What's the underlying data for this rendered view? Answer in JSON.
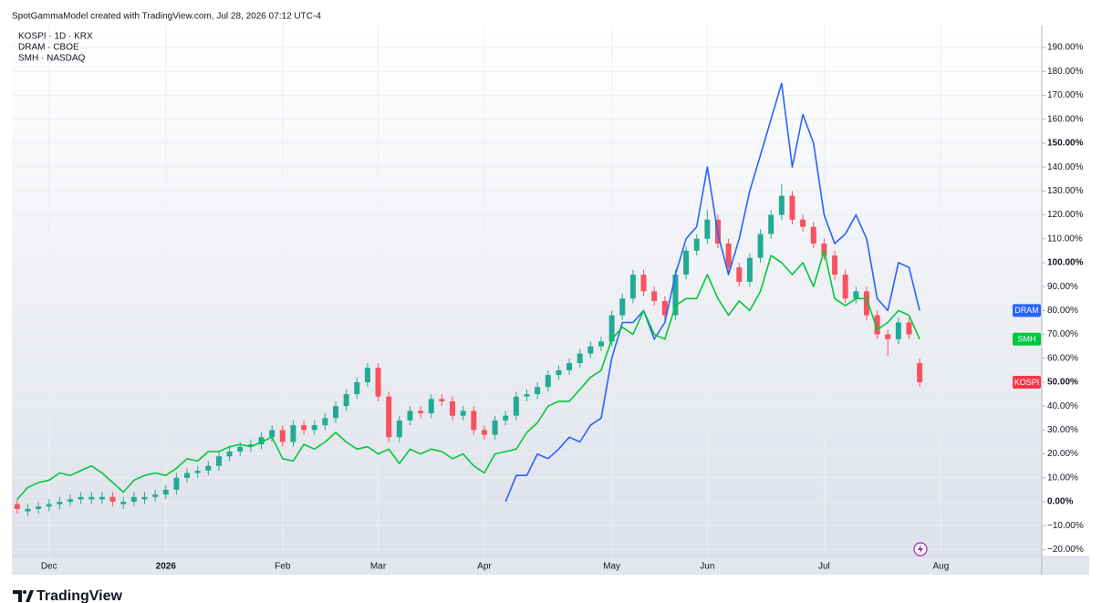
{
  "header": {
    "text": "SpotGammaModel created with TradingView.com, Jul 28, 2026 07:12 UTC-4"
  },
  "footer": {
    "brand": "TradingView"
  },
  "chart_data": {
    "type": "candlestick",
    "legend": [
      "KOSPI · 1D · KRX",
      "DRAM · CBOE",
      "SMH · NASDAQ"
    ],
    "categories": [
      null,
      null,
      null,
      "Dec",
      null,
      null,
      null,
      null,
      null,
      null,
      null,
      null,
      null,
      null,
      "2026",
      null,
      null,
      null,
      null,
      null,
      null,
      null,
      null,
      null,
      null,
      "Feb",
      null,
      null,
      null,
      null,
      null,
      null,
      null,
      null,
      "Mar",
      null,
      null,
      null,
      null,
      null,
      null,
      null,
      null,
      null,
      "Apr",
      null,
      null,
      null,
      null,
      null,
      null,
      null,
      null,
      null,
      null,
      null,
      "May",
      null,
      null,
      null,
      null,
      null,
      null,
      null,
      null,
      "Jun",
      null,
      null,
      null,
      null,
      null,
      null,
      null,
      null,
      null,
      null,
      "Jul",
      null,
      null,
      null,
      null,
      null,
      null,
      null,
      null,
      null,
      null,
      "Aug",
      null,
      null,
      null,
      null,
      null,
      null,
      null,
      null,
      null
    ],
    "ylim": [
      -22.9,
      199.2
    ],
    "yticks": [
      {
        "value": -20,
        "label": "−20.00%"
      },
      {
        "value": -10,
        "label": "−10.00%"
      },
      {
        "value": 0,
        "label": "0.00%"
      },
      {
        "value": 10,
        "label": "10.00%"
      },
      {
        "value": 20,
        "label": "20.00%"
      },
      {
        "value": 30,
        "label": "30.00%"
      },
      {
        "value": 40,
        "label": "40.00%"
      },
      {
        "value": 50,
        "label": "50.00%"
      },
      {
        "value": 60,
        "label": "60.00%"
      },
      {
        "value": 70,
        "label": "70.00%"
      },
      {
        "value": 80,
        "label": "80.00%"
      },
      {
        "value": 90,
        "label": "90.00%"
      },
      {
        "value": 100,
        "label": "100.00%"
      },
      {
        "value": 110,
        "label": "110.00%"
      },
      {
        "value": 120,
        "label": "120.00%"
      },
      {
        "value": 130,
        "label": "130.00%"
      },
      {
        "value": 140,
        "label": "140.00%"
      },
      {
        "value": 150,
        "label": "150.00%"
      },
      {
        "value": 160,
        "label": "160.00%"
      },
      {
        "value": 170,
        "label": "170.00%"
      },
      {
        "value": 180,
        "label": "180.00%"
      },
      {
        "value": 190,
        "label": "190.00%"
      }
    ],
    "grid": true,
    "series": [
      {
        "name": "KOSPI",
        "type": "candlestick",
        "color": "#f23645",
        "color_up": "#22ab94",
        "color_down": "#f7525f",
        "open": [
          -1,
          -4,
          -3,
          -2,
          -1,
          0,
          1,
          1,
          1,
          2,
          -1,
          0,
          1,
          2,
          3,
          5,
          10,
          12,
          13,
          15,
          19,
          21,
          23,
          24,
          27,
          30,
          25,
          32,
          30,
          32,
          35,
          40,
          45,
          50,
          56,
          44,
          27,
          34,
          38,
          37,
          43,
          42,
          36,
          38,
          30,
          28,
          34,
          36,
          44,
          45,
          48,
          53,
          55,
          58,
          62,
          65,
          67,
          78,
          85,
          95,
          88,
          84,
          78,
          95,
          105,
          110,
          118,
          108,
          98,
          92,
          102,
          112,
          120,
          128,
          118,
          115,
          108,
          103,
          95,
          85,
          88,
          78,
          70,
          68,
          75,
          58,
          null,
          null,
          null,
          null,
          null,
          null,
          null,
          null,
          null,
          null,
          null
        ],
        "high": [
          1,
          -1,
          0,
          1,
          2,
          3,
          4,
          4,
          4,
          4,
          2,
          4,
          4,
          5,
          7,
          12,
          14,
          15,
          17,
          21,
          23,
          25,
          26,
          29,
          32,
          32,
          34,
          34,
          34,
          37,
          42,
          47,
          52,
          58,
          58,
          46,
          36,
          40,
          40,
          45,
          45,
          44,
          40,
          40,
          32,
          36,
          38,
          46,
          47,
          50,
          55,
          57,
          60,
          64,
          67,
          69,
          80,
          87,
          97,
          97,
          90,
          86,
          97,
          107,
          112,
          122,
          120,
          110,
          100,
          104,
          114,
          122,
          133,
          130,
          120,
          117,
          110,
          105,
          97,
          90,
          90,
          80,
          72,
          77,
          77,
          60,
          null,
          null,
          null,
          null,
          null,
          null,
          null,
          null,
          null,
          null,
          null
        ],
        "low": [
          -5,
          -6,
          -5,
          -4,
          -3,
          -2,
          -1,
          -1,
          -1,
          -2,
          -3,
          -2,
          -1,
          0,
          1,
          3,
          8,
          10,
          11,
          13,
          17,
          19,
          21,
          22,
          25,
          23,
          23,
          28,
          28,
          30,
          33,
          38,
          43,
          48,
          42,
          25,
          25,
          32,
          35,
          35,
          40,
          34,
          34,
          28,
          26,
          26,
          32,
          34,
          42,
          43,
          46,
          51,
          53,
          56,
          60,
          63,
          65,
          76,
          83,
          86,
          82,
          76,
          76,
          93,
          103,
          108,
          106,
          96,
          90,
          90,
          100,
          110,
          118,
          116,
          113,
          106,
          101,
          93,
          83,
          83,
          76,
          68,
          61,
          66,
          68,
          48,
          null,
          null,
          null,
          null,
          null,
          null,
          null,
          null,
          null,
          null,
          null
        ],
        "close": [
          -3,
          -3,
          -2,
          -1,
          0,
          1,
          2,
          2,
          2,
          0,
          0,
          2,
          2,
          3,
          5,
          10,
          12,
          13,
          15,
          19,
          21,
          23,
          24,
          27,
          30,
          25,
          32,
          30,
          32,
          35,
          40,
          45,
          50,
          56,
          44,
          27,
          34,
          38,
          37,
          43,
          42,
          36,
          38,
          30,
          28,
          34,
          36,
          44,
          45,
          48,
          53,
          55,
          58,
          62,
          65,
          67,
          78,
          85,
          95,
          88,
          84,
          78,
          95,
          105,
          110,
          118,
          108,
          98,
          92,
          102,
          112,
          120,
          128,
          118,
          115,
          108,
          103,
          95,
          85,
          88,
          78,
          70,
          68,
          75,
          70,
          50,
          null,
          null,
          null,
          null,
          null,
          null,
          null,
          null,
          null,
          null,
          null
        ]
      },
      {
        "name": "DRAM",
        "type": "line",
        "color": "#2962ff",
        "values": [
          null,
          null,
          null,
          null,
          null,
          null,
          null,
          null,
          null,
          null,
          null,
          null,
          null,
          null,
          null,
          null,
          null,
          null,
          null,
          null,
          null,
          null,
          null,
          null,
          null,
          null,
          null,
          null,
          null,
          null,
          null,
          null,
          null,
          null,
          null,
          null,
          null,
          null,
          null,
          null,
          null,
          null,
          null,
          null,
          null,
          null,
          0,
          11,
          11,
          20,
          18,
          22,
          27,
          25,
          32,
          35,
          60,
          75,
          75,
          80,
          68,
          75,
          95,
          110,
          115,
          140,
          112,
          95,
          110,
          130,
          145,
          160,
          175,
          140,
          162,
          150,
          120,
          108,
          112,
          120,
          110,
          85,
          80,
          100,
          98,
          80,
          null,
          null,
          null,
          null,
          null,
          null,
          null,
          null,
          null,
          null,
          null
        ]
      },
      {
        "name": "SMH",
        "type": "line",
        "color": "#00c83c",
        "values": [
          1,
          6,
          8,
          9,
          12,
          11,
          13,
          15,
          12,
          8,
          4,
          9,
          11,
          12,
          11,
          14,
          18,
          17,
          21,
          21,
          23,
          24,
          23,
          25,
          27,
          18,
          17,
          24,
          22,
          25,
          29,
          25,
          22,
          23,
          20,
          22,
          16,
          22,
          20,
          22,
          21,
          18,
          20,
          15,
          12,
          20,
          21,
          22,
          29,
          33,
          40,
          42,
          42,
          47,
          52,
          55,
          68,
          73,
          70,
          80,
          70,
          68,
          82,
          85,
          85,
          95,
          85,
          78,
          84,
          80,
          88,
          103,
          100,
          95,
          100,
          90,
          105,
          85,
          82,
          85,
          85,
          72,
          75,
          80,
          78,
          68,
          null,
          null,
          null,
          null,
          null,
          null,
          null,
          null,
          null,
          null,
          null
        ]
      }
    ]
  }
}
